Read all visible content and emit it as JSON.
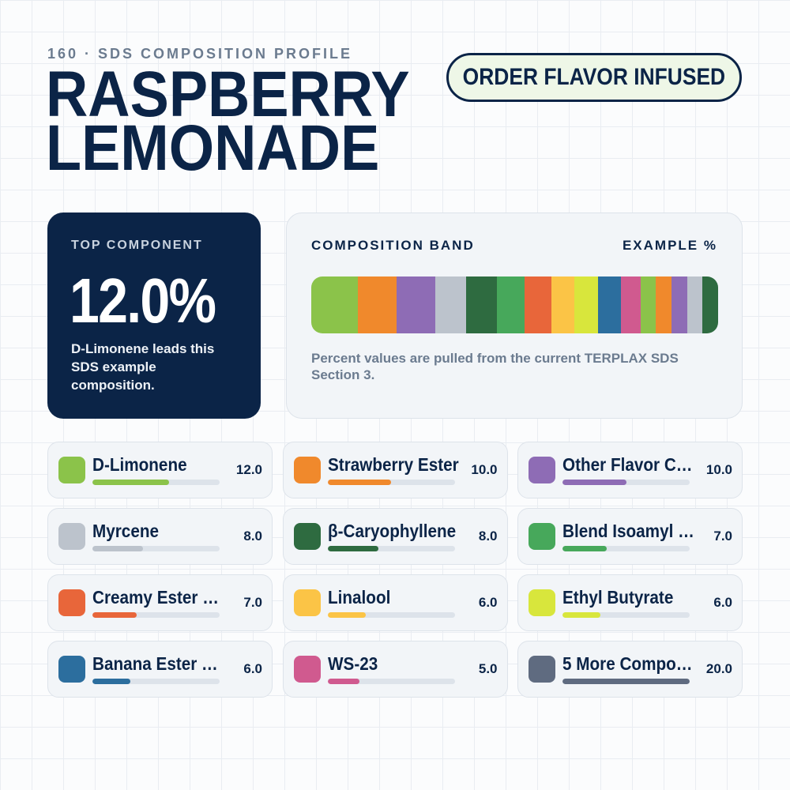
{
  "header": {
    "eyebrow": "160 · SDS COMPOSITION PROFILE",
    "title_line1": "RASPBERRY",
    "title_line2": "LEMONADE",
    "order_button": "ORDER FLAVOR INFUSED"
  },
  "top_component": {
    "label": "TOP COMPONENT",
    "value": "12.0%",
    "description": "D-Limonene leads this SDS example composition."
  },
  "band": {
    "title": "COMPOSITION BAND",
    "example_label": "EXAMPLE %",
    "note": "Percent values are pulled from the current TERPLAX SDS Section 3.",
    "segment_colors": [
      "#8bc34a",
      "#f0892c",
      "#8e6cb5",
      "#bcc3cc",
      "#2e6b40",
      "#47a85b",
      "#e8663a",
      "#fbc446",
      "#d8e63c",
      "#2c6e9e",
      "#d05a8f",
      "#8bc34a",
      "#f0892c",
      "#8e6cb5",
      "#bcc3cc",
      "#2e6b40"
    ],
    "segment_values": [
      12,
      10,
      10,
      8,
      8,
      7,
      7,
      6,
      6,
      6,
      5,
      4,
      4,
      4,
      4,
      4
    ]
  },
  "components": [
    {
      "name": "D-Limonene",
      "value": "12.0",
      "color": "#8bc34a",
      "fraction": 0.12
    },
    {
      "name": "Strawberry Ester",
      "value": "10.0",
      "color": "#f0892c",
      "fraction": 0.1
    },
    {
      "name": "Other Flavor C…",
      "value": "10.0",
      "color": "#8e6cb5",
      "fraction": 0.1
    },
    {
      "name": "Myrcene",
      "value": "8.0",
      "color": "#bcc3cc",
      "fraction": 0.08
    },
    {
      "name": "β-Caryophyllene",
      "value": "8.0",
      "color": "#2e6b40",
      "fraction": 0.08
    },
    {
      "name": "Blend Isoamyl …",
      "value": "7.0",
      "color": "#47a85b",
      "fraction": 0.07
    },
    {
      "name": "Creamy Ester …",
      "value": "7.0",
      "color": "#e8663a",
      "fraction": 0.07
    },
    {
      "name": "Linalool",
      "value": "6.0",
      "color": "#fbc446",
      "fraction": 0.06
    },
    {
      "name": "Ethyl Butyrate",
      "value": "6.0",
      "color": "#d8e63c",
      "fraction": 0.06
    },
    {
      "name": "Banana Ester …",
      "value": "6.0",
      "color": "#2c6e9e",
      "fraction": 0.06
    },
    {
      "name": "WS-23",
      "value": "5.0",
      "color": "#d05a8f",
      "fraction": 0.05
    },
    {
      "name": "5 More Compo…",
      "value": "20.0",
      "color": "#5f6b80",
      "fraction": 0.2
    }
  ]
}
